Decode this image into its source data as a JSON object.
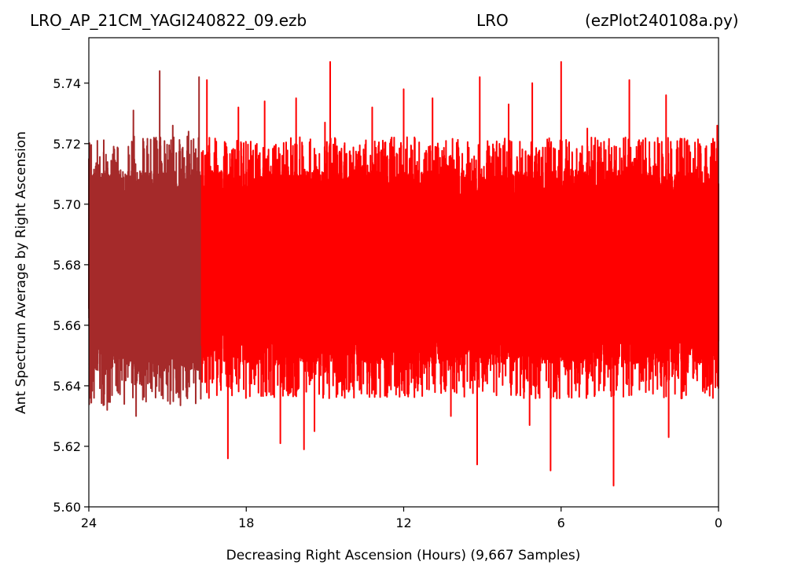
{
  "chart_data": {
    "type": "line",
    "title_parts": [
      "LRO_AP_21CM_YAGI240822_09.ezb",
      "LRO",
      "(ezPlot240108a.py)"
    ],
    "xlabel": "Decreasing Right Ascension (Hours) (9,667 Samples)",
    "ylabel": "Ant Spectrum Average by Right Ascension",
    "x_axis_direction": "decreasing",
    "xlim": [
      24,
      0
    ],
    "ylim": [
      5.6,
      5.755
    ],
    "x_ticks": [
      24,
      18,
      12,
      6,
      0
    ],
    "x_tick_labels": [
      "24",
      "18",
      "12",
      "6",
      "0"
    ],
    "y_ticks": [
      5.6,
      5.62,
      5.64,
      5.66,
      5.68,
      5.7,
      5.72,
      5.74
    ],
    "y_tick_labels": [
      "5.60",
      "5.62",
      "5.64",
      "5.66",
      "5.68",
      "5.70",
      "5.72",
      "5.74"
    ],
    "grid": false,
    "legend": "none",
    "sample_count": 9667,
    "series": [
      {
        "color": "#a52a2a",
        "x_range": [
          24,
          19.7
        ],
        "band": [
          5.645,
          5.711
        ],
        "extreme_spikes": [
          {
            "x": 23.95,
            "y": 5.737
          },
          {
            "x": 23.3,
            "y": 5.736
          },
          {
            "x": 22.3,
            "y": 5.731
          },
          {
            "x": 21.3,
            "y": 5.744
          },
          {
            "x": 20.8,
            "y": 5.726
          },
          {
            "x": 20.2,
            "y": 5.724
          },
          {
            "x": 19.8,
            "y": 5.742
          },
          {
            "x": 23.95,
            "y": 5.636
          },
          {
            "x": 23.3,
            "y": 5.632
          },
          {
            "x": 22.2,
            "y": 5.63
          },
          {
            "x": 20.9,
            "y": 5.634
          },
          {
            "x": 20.0,
            "y": 5.641
          }
        ]
      },
      {
        "color": "#ff0000",
        "x_range": [
          19.7,
          0
        ],
        "band": [
          5.647,
          5.711
        ],
        "extreme_spikes": [
          {
            "x": 19.5,
            "y": 5.741
          },
          {
            "x": 18.3,
            "y": 5.732
          },
          {
            "x": 17.3,
            "y": 5.734
          },
          {
            "x": 16.1,
            "y": 5.735
          },
          {
            "x": 15.0,
            "y": 5.727
          },
          {
            "x": 14.8,
            "y": 5.747
          },
          {
            "x": 13.2,
            "y": 5.732
          },
          {
            "x": 12.0,
            "y": 5.738
          },
          {
            "x": 10.9,
            "y": 5.735
          },
          {
            "x": 9.1,
            "y": 5.742
          },
          {
            "x": 8.0,
            "y": 5.733
          },
          {
            "x": 7.1,
            "y": 5.74
          },
          {
            "x": 6.0,
            "y": 5.747
          },
          {
            "x": 5.0,
            "y": 5.725
          },
          {
            "x": 3.4,
            "y": 5.741
          },
          {
            "x": 2.0,
            "y": 5.736
          },
          {
            "x": 0.05,
            "y": 5.726
          },
          {
            "x": 18.7,
            "y": 5.616
          },
          {
            "x": 16.7,
            "y": 5.621
          },
          {
            "x": 15.8,
            "y": 5.619
          },
          {
            "x": 15.4,
            "y": 5.625
          },
          {
            "x": 10.2,
            "y": 5.63
          },
          {
            "x": 9.2,
            "y": 5.614
          },
          {
            "x": 7.2,
            "y": 5.627
          },
          {
            "x": 6.4,
            "y": 5.612
          },
          {
            "x": 4.0,
            "y": 5.607
          },
          {
            "x": 1.9,
            "y": 5.623
          },
          {
            "x": 0.4,
            "y": 5.64
          }
        ]
      }
    ]
  }
}
